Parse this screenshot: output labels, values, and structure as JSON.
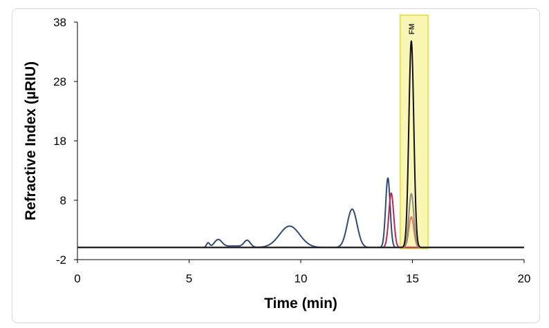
{
  "chart_data": {
    "type": "line",
    "title": "",
    "xlabel": "Time (min)",
    "ylabel": "Refractive Index (µRIU)",
    "xlim": [
      0,
      20
    ],
    "ylim": [
      -2,
      38
    ],
    "xticks": [
      "0",
      "5",
      "10",
      "15",
      "20"
    ],
    "yticks": [
      "-2",
      "8",
      "18",
      "28",
      "38"
    ],
    "grid": false,
    "legend": "none",
    "highlight": {
      "label": "FM",
      "x_range": [
        14.45,
        15.7
      ],
      "color": "#f5f07a"
    },
    "series": [
      {
        "color": "#2e4a7d",
        "baseline": 0.05,
        "peaks": [
          {
            "x": 5.85,
            "height": 0.75,
            "width": 0.07
          },
          {
            "x": 6.3,
            "height": 1.25,
            "width": 0.17
          },
          {
            "x": 7.6,
            "height": 1.1,
            "width": 0.14
          },
          {
            "x": 7.0,
            "height": 0.25,
            "width": 0.5
          },
          {
            "x": 9.5,
            "height": 3.6,
            "width": 0.45
          },
          {
            "x": 12.3,
            "height": 6.45,
            "width": 0.22
          },
          {
            "x": 13.9,
            "height": 11.7,
            "width": 0.1
          }
        ]
      },
      {
        "color": "#c0284f",
        "baseline": 0.05,
        "peaks": [
          {
            "x": 14.05,
            "height": 9.15,
            "width": 0.11
          }
        ]
      },
      {
        "color": "#e07a5f",
        "baseline": 0.05,
        "peaks": [
          {
            "x": 14.95,
            "height": 5.15,
            "width": 0.11
          }
        ]
      },
      {
        "color": "#8a8e86",
        "baseline": 0.05,
        "peaks": [
          {
            "x": 14.95,
            "height": 9.05,
            "width": 0.11
          }
        ]
      },
      {
        "color": "#111111",
        "baseline": 0.05,
        "peaks": [
          {
            "x": 14.95,
            "height": 34.75,
            "width": 0.11
          }
        ]
      }
    ]
  }
}
